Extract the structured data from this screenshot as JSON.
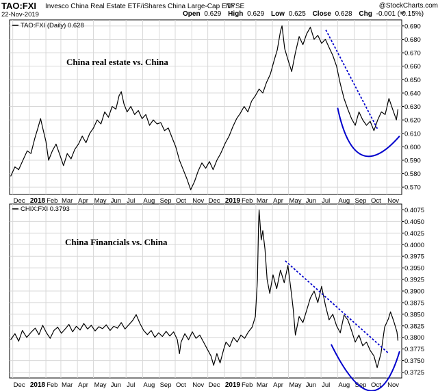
{
  "header": {
    "symbol": "TAO:FXI",
    "description": "Invesco China Real Estate ETF/iShares China Large-Cap ETF",
    "exchange": "NYSE",
    "date": "22-Nov-2019",
    "open_label": "Open",
    "open": "0.629",
    "high_label": "High",
    "high": "0.629",
    "low_label": "Low",
    "low": "0.625",
    "close_label": "Close",
    "close": "0.628",
    "chg_label": "Chg",
    "chg": "-0.001 (-0.15%)",
    "menu_icon": "dropdown-triangle-icon",
    "credit": "@StockCharts.com",
    "credit_icon": "stockcharts-logo-icon"
  },
  "chart_data": [
    {
      "type": "line",
      "legend": "TAO:FXI (Daily) 0.628",
      "annotation": "China real estate vs. China",
      "series_color": "#000000",
      "overlay_color": "#0000cc",
      "ylim": [
        0.5645,
        0.6945
      ],
      "y_ticks": [
        "0.570",
        "0.580",
        "0.590",
        "0.600",
        "0.610",
        "0.620",
        "0.630",
        "0.640",
        "0.650",
        "0.660",
        "0.670",
        "0.680",
        "0.690"
      ],
      "x_tick_labels": [
        "Dec",
        "2018",
        "Feb",
        "Mar",
        "Apr",
        "May",
        "Jun",
        "Jul",
        "Aug",
        "Sep",
        "Oct",
        "Nov",
        "Dec",
        "2019",
        "Feb",
        "Mar",
        "Apr",
        "May",
        "Jun",
        "Jul",
        "Aug",
        "Sep",
        "Oct",
        "Nov"
      ],
      "x_tick_bold": [
        "2018",
        "2019"
      ],
      "x_range": [
        "2017-11-25",
        "2019-11-29"
      ],
      "points": [
        [
          "2017-11-27",
          0.578
        ],
        [
          "2017-12-05",
          0.585
        ],
        [
          "2017-12-12",
          0.583
        ],
        [
          "2017-12-20",
          0.59
        ],
        [
          "2017-12-28",
          0.597
        ],
        [
          "2018-01-04",
          0.595
        ],
        [
          "2018-01-11",
          0.606
        ],
        [
          "2018-01-17",
          0.614
        ],
        [
          "2018-01-22",
          0.621
        ],
        [
          "2018-01-26",
          0.614
        ],
        [
          "2018-02-01",
          0.604
        ],
        [
          "2018-02-06",
          0.59
        ],
        [
          "2018-02-13",
          0.597
        ],
        [
          "2018-02-20",
          0.602
        ],
        [
          "2018-02-27",
          0.594
        ],
        [
          "2018-03-06",
          0.586
        ],
        [
          "2018-03-13",
          0.595
        ],
        [
          "2018-03-20",
          0.591
        ],
        [
          "2018-03-27",
          0.598
        ],
        [
          "2018-04-03",
          0.602
        ],
        [
          "2018-04-10",
          0.608
        ],
        [
          "2018-04-17",
          0.603
        ],
        [
          "2018-04-24",
          0.61
        ],
        [
          "2018-05-01",
          0.614
        ],
        [
          "2018-05-08",
          0.62
        ],
        [
          "2018-05-15",
          0.617
        ],
        [
          "2018-05-22",
          0.626
        ],
        [
          "2018-05-29",
          0.622
        ],
        [
          "2018-06-05",
          0.63
        ],
        [
          "2018-06-12",
          0.628
        ],
        [
          "2018-06-18",
          0.638
        ],
        [
          "2018-06-22",
          0.641
        ],
        [
          "2018-06-27",
          0.632
        ],
        [
          "2018-07-03",
          0.626
        ],
        [
          "2018-07-10",
          0.63
        ],
        [
          "2018-07-17",
          0.624
        ],
        [
          "2018-07-24",
          0.627
        ],
        [
          "2018-07-31",
          0.621
        ],
        [
          "2018-08-07",
          0.624
        ],
        [
          "2018-08-14",
          0.616
        ],
        [
          "2018-08-21",
          0.62
        ],
        [
          "2018-08-28",
          0.617
        ],
        [
          "2018-09-04",
          0.618
        ],
        [
          "2018-09-11",
          0.612
        ],
        [
          "2018-09-18",
          0.614
        ],
        [
          "2018-09-25",
          0.607
        ],
        [
          "2018-10-02",
          0.6
        ],
        [
          "2018-10-09",
          0.59
        ],
        [
          "2018-10-16",
          0.583
        ],
        [
          "2018-10-23",
          0.576
        ],
        [
          "2018-10-30",
          0.568
        ],
        [
          "2018-11-06",
          0.574
        ],
        [
          "2018-11-13",
          0.582
        ],
        [
          "2018-11-20",
          0.588
        ],
        [
          "2018-11-27",
          0.584
        ],
        [
          "2018-12-04",
          0.589
        ],
        [
          "2018-12-11",
          0.583
        ],
        [
          "2018-12-18",
          0.59
        ],
        [
          "2018-12-25",
          0.595
        ],
        [
          "2019-01-03",
          0.603
        ],
        [
          "2019-01-10",
          0.608
        ],
        [
          "2019-01-17",
          0.615
        ],
        [
          "2019-01-24",
          0.621
        ],
        [
          "2019-01-31",
          0.625
        ],
        [
          "2019-02-07",
          0.63
        ],
        [
          "2019-02-14",
          0.626
        ],
        [
          "2019-02-21",
          0.634
        ],
        [
          "2019-02-28",
          0.638
        ],
        [
          "2019-03-07",
          0.643
        ],
        [
          "2019-03-14",
          0.64
        ],
        [
          "2019-03-21",
          0.648
        ],
        [
          "2019-03-28",
          0.654
        ],
        [
          "2019-04-04",
          0.664
        ],
        [
          "2019-04-10",
          0.672
        ],
        [
          "2019-04-16",
          0.686
        ],
        [
          "2019-04-19",
          0.69
        ],
        [
          "2019-04-24",
          0.673
        ],
        [
          "2019-04-30",
          0.665
        ],
        [
          "2019-05-07",
          0.656
        ],
        [
          "2019-05-14",
          0.67
        ],
        [
          "2019-05-21",
          0.682
        ],
        [
          "2019-05-28",
          0.676
        ],
        [
          "2019-06-04",
          0.684
        ],
        [
          "2019-06-11",
          0.689
        ],
        [
          "2019-06-18",
          0.68
        ],
        [
          "2019-06-25",
          0.683
        ],
        [
          "2019-07-02",
          0.677
        ],
        [
          "2019-07-09",
          0.68
        ],
        [
          "2019-07-16",
          0.674
        ],
        [
          "2019-07-23",
          0.668
        ],
        [
          "2019-07-30",
          0.66
        ],
        [
          "2019-08-06",
          0.647
        ],
        [
          "2019-08-13",
          0.636
        ],
        [
          "2019-08-20",
          0.628
        ],
        [
          "2019-08-27",
          0.621
        ],
        [
          "2019-09-03",
          0.616
        ],
        [
          "2019-09-10",
          0.626
        ],
        [
          "2019-09-17",
          0.62
        ],
        [
          "2019-09-24",
          0.616
        ],
        [
          "2019-10-01",
          0.619
        ],
        [
          "2019-10-08",
          0.612
        ],
        [
          "2019-10-15",
          0.62
        ],
        [
          "2019-10-22",
          0.626
        ],
        [
          "2019-10-29",
          0.624
        ],
        [
          "2019-11-05",
          0.636
        ],
        [
          "2019-11-12",
          0.628
        ],
        [
          "2019-11-19",
          0.62
        ],
        [
          "2019-11-22",
          0.628
        ]
      ],
      "trendline": [
        [
          "2019-07-10",
          0.687
        ],
        [
          "2019-10-15",
          0.613
        ]
      ],
      "curve": [
        [
          "2019-08-01",
          0.629
        ],
        [
          "2019-09-15",
          0.594
        ],
        [
          "2019-11-25",
          0.608
        ]
      ]
    },
    {
      "type": "line",
      "legend": "CHIX:FXI 0.3793",
      "annotation": "China Financials vs. China",
      "series_color": "#000000",
      "overlay_color": "#0000cc",
      "ylim": [
        0.37125,
        0.40875
      ],
      "y_ticks": [
        "0.3725",
        "0.3750",
        "0.3775",
        "0.3800",
        "0.3825",
        "0.3850",
        "0.3875",
        "0.3900",
        "0.3925",
        "0.3950",
        "0.3975",
        "0.4000",
        "0.4025",
        "0.4050",
        "0.4075"
      ],
      "x_tick_labels": [
        "Dec",
        "2018",
        "Feb",
        "Mar",
        "Apr",
        "May",
        "Jun",
        "Jul",
        "Aug",
        "Sep",
        "Oct",
        "Nov",
        "Dec",
        "2019",
        "Feb",
        "Mar",
        "Apr",
        "May",
        "Jun",
        "Jul",
        "Aug",
        "Sep",
        "Oct",
        "Nov"
      ],
      "x_tick_bold": [
        "2018",
        "2019"
      ],
      "x_range": [
        "2017-11-25",
        "2019-11-29"
      ],
      "points": [
        [
          "2017-11-27",
          0.3795
        ],
        [
          "2017-12-05",
          0.3808
        ],
        [
          "2017-12-12",
          0.3792
        ],
        [
          "2017-12-19",
          0.3815
        ],
        [
          "2017-12-27",
          0.38
        ],
        [
          "2018-01-05",
          0.3812
        ],
        [
          "2018-01-12",
          0.382
        ],
        [
          "2018-01-19",
          0.3806
        ],
        [
          "2018-01-26",
          0.3826
        ],
        [
          "2018-02-02",
          0.381
        ],
        [
          "2018-02-09",
          0.3798
        ],
        [
          "2018-02-16",
          0.3815
        ],
        [
          "2018-02-23",
          0.3822
        ],
        [
          "2018-03-02",
          0.3809
        ],
        [
          "2018-03-09",
          0.3818
        ],
        [
          "2018-03-16",
          0.3828
        ],
        [
          "2018-03-23",
          0.3812
        ],
        [
          "2018-03-30",
          0.3824
        ],
        [
          "2018-04-06",
          0.3816
        ],
        [
          "2018-04-13",
          0.383
        ],
        [
          "2018-04-20",
          0.3818
        ],
        [
          "2018-04-27",
          0.3826
        ],
        [
          "2018-05-04",
          0.3814
        ],
        [
          "2018-05-11",
          0.3823
        ],
        [
          "2018-05-18",
          0.3819
        ],
        [
          "2018-05-25",
          0.3827
        ],
        [
          "2018-06-01",
          0.3815
        ],
        [
          "2018-06-08",
          0.3824
        ],
        [
          "2018-06-15",
          0.382
        ],
        [
          "2018-06-22",
          0.3832
        ],
        [
          "2018-06-29",
          0.3818
        ],
        [
          "2018-07-06",
          0.3827
        ],
        [
          "2018-07-13",
          0.3836
        ],
        [
          "2018-07-20",
          0.3849
        ],
        [
          "2018-07-27",
          0.383
        ],
        [
          "2018-08-03",
          0.3815
        ],
        [
          "2018-08-10",
          0.3806
        ],
        [
          "2018-08-17",
          0.3815
        ],
        [
          "2018-08-24",
          0.38
        ],
        [
          "2018-08-31",
          0.381
        ],
        [
          "2018-09-07",
          0.3802
        ],
        [
          "2018-09-14",
          0.3813
        ],
        [
          "2018-09-21",
          0.3803
        ],
        [
          "2018-09-28",
          0.3812
        ],
        [
          "2018-10-05",
          0.3795
        ],
        [
          "2018-10-09",
          0.3765
        ],
        [
          "2018-10-12",
          0.379
        ],
        [
          "2018-10-19",
          0.3808
        ],
        [
          "2018-10-26",
          0.3795
        ],
        [
          "2018-11-02",
          0.3812
        ],
        [
          "2018-11-09",
          0.3798
        ],
        [
          "2018-11-16",
          0.3805
        ],
        [
          "2018-11-23",
          0.379
        ],
        [
          "2018-11-30",
          0.3775
        ],
        [
          "2018-12-07",
          0.376
        ],
        [
          "2018-12-12",
          0.374
        ],
        [
          "2018-12-18",
          0.3765
        ],
        [
          "2018-12-24",
          0.3745
        ],
        [
          "2018-12-31",
          0.3775
        ],
        [
          "2019-01-04",
          0.379
        ],
        [
          "2019-01-11",
          0.378
        ],
        [
          "2019-01-18",
          0.38
        ],
        [
          "2019-01-25",
          0.379
        ],
        [
          "2019-02-01",
          0.3805
        ],
        [
          "2019-02-08",
          0.3798
        ],
        [
          "2019-02-15",
          0.3812
        ],
        [
          "2019-02-22",
          0.3822
        ],
        [
          "2019-02-28",
          0.3845
        ],
        [
          "2019-03-04",
          0.3925
        ],
        [
          "2019-03-06",
          0.4045
        ],
        [
          "2019-03-07",
          0.4075
        ],
        [
          "2019-03-11",
          0.401
        ],
        [
          "2019-03-14",
          0.403
        ],
        [
          "2019-03-18",
          0.399
        ],
        [
          "2019-03-22",
          0.3925
        ],
        [
          "2019-03-27",
          0.3895
        ],
        [
          "2019-04-02",
          0.3935
        ],
        [
          "2019-04-09",
          0.3905
        ],
        [
          "2019-04-16",
          0.3945
        ],
        [
          "2019-04-23",
          0.3918
        ],
        [
          "2019-04-30",
          0.3955
        ],
        [
          "2019-05-07",
          0.389
        ],
        [
          "2019-05-10",
          0.386
        ],
        [
          "2019-05-14",
          0.3805
        ],
        [
          "2019-05-21",
          0.3845
        ],
        [
          "2019-05-28",
          0.3832
        ],
        [
          "2019-06-04",
          0.3858
        ],
        [
          "2019-06-11",
          0.3885
        ],
        [
          "2019-06-18",
          0.39
        ],
        [
          "2019-06-25",
          0.3875
        ],
        [
          "2019-07-02",
          0.391
        ],
        [
          "2019-07-09",
          0.387
        ],
        [
          "2019-07-16",
          0.3838
        ],
        [
          "2019-07-23",
          0.385
        ],
        [
          "2019-07-30",
          0.3825
        ],
        [
          "2019-08-06",
          0.381
        ],
        [
          "2019-08-13",
          0.3848
        ],
        [
          "2019-08-20",
          0.3838
        ],
        [
          "2019-08-27",
          0.3815
        ],
        [
          "2019-09-03",
          0.379
        ],
        [
          "2019-09-10",
          0.3805
        ],
        [
          "2019-09-17",
          0.3782
        ],
        [
          "2019-09-24",
          0.379
        ],
        [
          "2019-10-01",
          0.3772
        ],
        [
          "2019-10-08",
          0.376
        ],
        [
          "2019-10-14",
          0.3735
        ],
        [
          "2019-10-21",
          0.3765
        ],
        [
          "2019-10-28",
          0.3822
        ],
        [
          "2019-11-04",
          0.384
        ],
        [
          "2019-11-08",
          0.3855
        ],
        [
          "2019-11-14",
          0.3835
        ],
        [
          "2019-11-20",
          0.3812
        ],
        [
          "2019-11-22",
          0.3793
        ]
      ],
      "trendline": [
        [
          "2019-04-25",
          0.3965
        ],
        [
          "2019-11-05",
          0.3765
        ]
      ],
      "curve": [
        [
          "2019-07-20",
          0.3785
        ],
        [
          "2019-10-01",
          0.3685
        ],
        [
          "2019-11-25",
          0.377
        ]
      ]
    }
  ]
}
